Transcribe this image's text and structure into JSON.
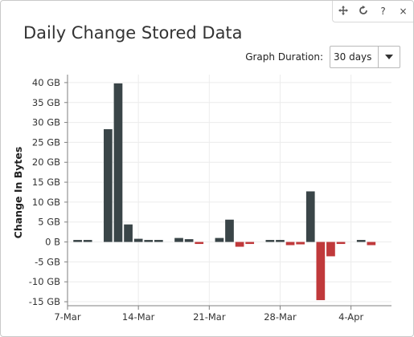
{
  "toolbar": {
    "move_icon": "move-arrows-icon",
    "refresh_icon": "refresh-icon",
    "help_label": "?",
    "close_label": "×"
  },
  "title": "Daily Change Stored Data",
  "graph_duration": {
    "label": "Graph Duration:",
    "selected": "30 days"
  },
  "colors": {
    "positive": "#3a4548",
    "negative": "#c0393b",
    "grid": "#ececec",
    "axis": "#7f7f7f"
  },
  "chart_data": {
    "type": "bar",
    "title": "",
    "xlabel": "",
    "ylabel": "Change In Bytes",
    "ylim": [
      -16,
      42
    ],
    "yticks": [
      40,
      35,
      30,
      25,
      20,
      15,
      10,
      5,
      0,
      -5,
      -10,
      -15
    ],
    "ytick_labels": [
      "40 GB",
      "35 GB",
      "30 GB",
      "25 GB",
      "20 GB",
      "15 GB",
      "10 GB",
      "5 GB",
      "0 B",
      "-5 GB",
      "-10 GB",
      "-15 GB"
    ],
    "xlim": [
      "2016-03-07",
      "2016-04-08"
    ],
    "xticks": [
      "2016-03-07",
      "2016-03-14",
      "2016-03-21",
      "2016-03-28",
      "2016-04-04"
    ],
    "xtick_labels": [
      "7-Mar",
      "14-Mar",
      "21-Mar",
      "28-Mar",
      "4-Apr"
    ],
    "unit": "GB",
    "grid": true,
    "series": [
      {
        "x": [
          "2016-03-08",
          "2016-03-09",
          "2016-03-10",
          "2016-03-11",
          "2016-03-12",
          "2016-03-13",
          "2016-03-14",
          "2016-03-15",
          "2016-03-16",
          "2016-03-17",
          "2016-03-18",
          "2016-03-19",
          "2016-03-20",
          "2016-03-21",
          "2016-03-22",
          "2016-03-23",
          "2016-03-24",
          "2016-03-25",
          "2016-03-26",
          "2016-03-27",
          "2016-03-28",
          "2016-03-29",
          "2016-03-30",
          "2016-03-31",
          "2016-04-01",
          "2016-04-02",
          "2016-04-03",
          "2016-04-04",
          "2016-04-05",
          "2016-04-06"
        ],
        "values": [
          0.5,
          0.5,
          0,
          28.3,
          39.8,
          4.4,
          0.8,
          0.4,
          0.2,
          0,
          1.0,
          0.7,
          -0.5,
          0,
          1.0,
          5.6,
          -1.2,
          -0.3,
          0,
          0.5,
          0.5,
          -0.8,
          -0.6,
          12.7,
          -14.6,
          -3.6,
          -0.4,
          0,
          0.4,
          -0.8
        ]
      }
    ]
  }
}
